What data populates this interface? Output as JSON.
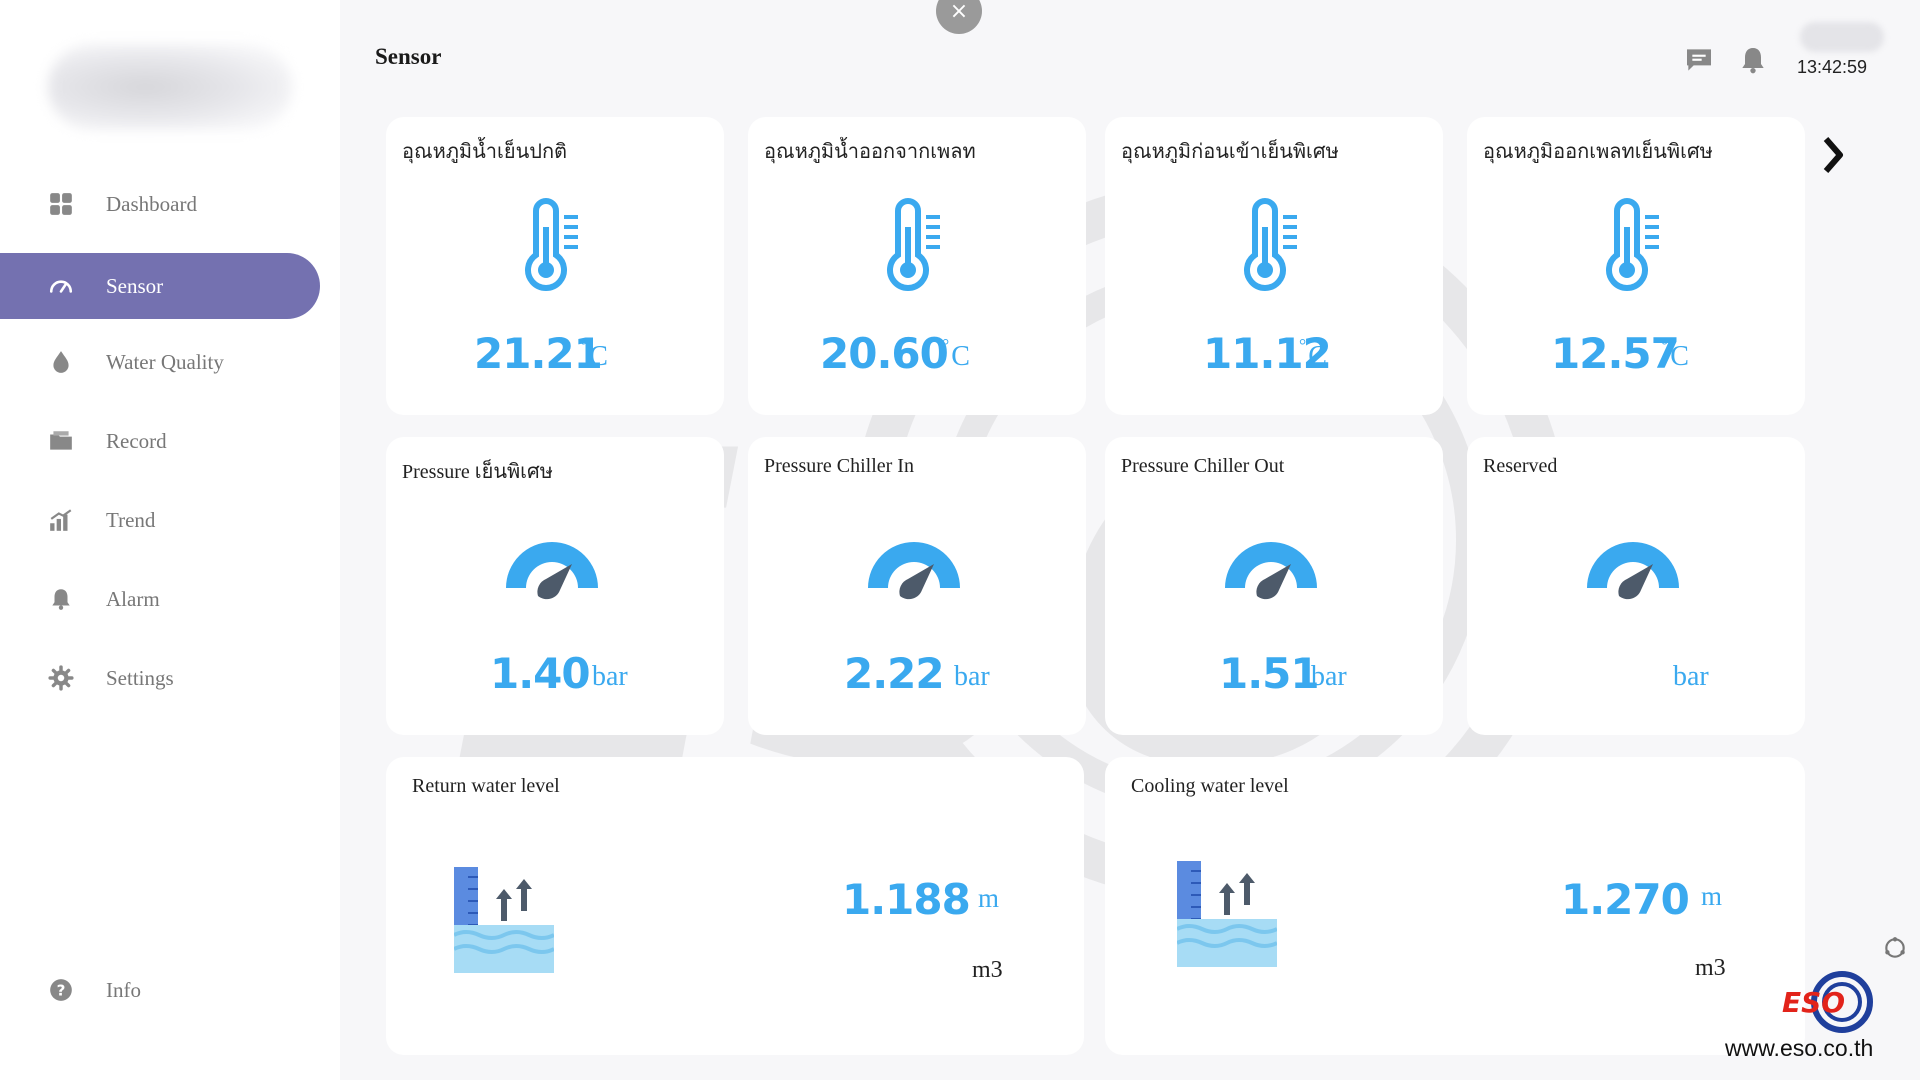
{
  "sidebar": {
    "items": [
      {
        "label": "Dashboard",
        "icon": "dashboard-grid-icon"
      },
      {
        "label": "Sensor",
        "icon": "gauge-icon",
        "active": true
      },
      {
        "label": "Water Quality",
        "icon": "water-drop-icon"
      },
      {
        "label": "Record",
        "icon": "folder-icon"
      },
      {
        "label": "Trend",
        "icon": "bar-chart-icon"
      },
      {
        "label": "Alarm",
        "icon": "bell-icon"
      },
      {
        "label": "Settings",
        "icon": "gear-icon"
      }
    ],
    "info": {
      "label": "Info",
      "icon": "help-circle-icon"
    }
  },
  "header": {
    "title": "Sensor",
    "close_symbol": "×",
    "time": "13:42:59"
  },
  "temperature_cards": [
    {
      "title": "อุณหภูมิน้ำเย็นปกติ",
      "value": "21.21",
      "unit": "C",
      "degree": "°"
    },
    {
      "title": "อุณหภูมิน้ำออกจากเพลท",
      "value": "20.60",
      "unit": "C",
      "degree": "°"
    },
    {
      "title": "อุณหภูมิก่อนเข้าเย็นพิเศษ",
      "value": "11.12",
      "unit": "C",
      "degree": "°"
    },
    {
      "title": "อุณหภูมิออกเพลทเย็นพิเศษ",
      "value": "12.57",
      "unit": "C",
      "degree": "°"
    }
  ],
  "pressure_cards": [
    {
      "title": "Pressure เย็นพิเศษ",
      "value": "1.40",
      "unit": "bar"
    },
    {
      "title": "Pressure Chiller In",
      "value": "2.22",
      "unit": "bar"
    },
    {
      "title": "Pressure Chiller Out",
      "value": "1.51",
      "unit": "bar"
    },
    {
      "title": "Reserved",
      "value": "",
      "unit": "bar"
    }
  ],
  "level_cards": [
    {
      "title": "Return water level",
      "value": "1.188",
      "unit": "m",
      "volume_unit": "m3"
    },
    {
      "title": "Cooling water level",
      "value": "1.270",
      "unit": "m",
      "volume_unit": "m3"
    }
  ],
  "branding": {
    "logo_text": "ESO",
    "url": "www.eso.co.th"
  },
  "colors": {
    "accent": "#7471b0",
    "value_blue": "#3aa9ef",
    "icon_blue": "#3aa9ef"
  }
}
